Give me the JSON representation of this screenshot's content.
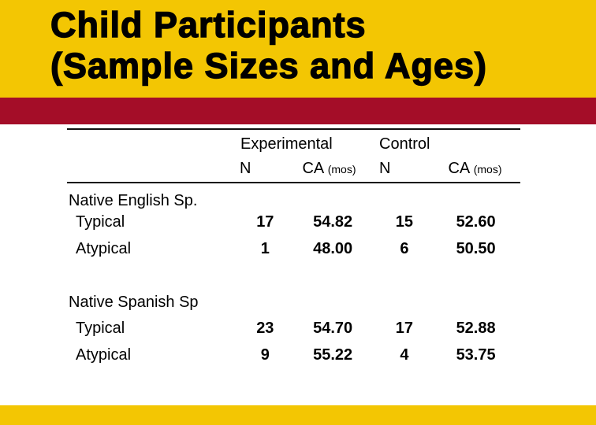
{
  "title": {
    "line1": "Child Participants",
    "line2": "(Sample Sizes and Ages)"
  },
  "colors": {
    "slide_yellow": "#F3C603",
    "band_red": "#A40D28",
    "text": "#000000",
    "rule": "#111111"
  },
  "table": {
    "col_groups": [
      {
        "label": "Experimental"
      },
      {
        "label": "Control"
      }
    ],
    "sub_headers": {
      "n_experimental": "N",
      "ca_experimental": "CA",
      "ca_unit_experimental": "(mos)",
      "n_control": "N",
      "ca_control": "CA",
      "ca_unit_control": "(mos)"
    },
    "groups": [
      {
        "label": "Native English Sp.",
        "rows": [
          {
            "label": "Typical",
            "n_exp": "17",
            "ca_exp": "54.82",
            "n_ctrl": "15",
            "ca_ctrl": "52.60"
          },
          {
            "label": "Atypical",
            "n_exp": "1",
            "ca_exp": "48.00",
            "n_ctrl": "6",
            "ca_ctrl": "50.50"
          }
        ]
      },
      {
        "label": "Native Spanish Sp",
        "rows": [
          {
            "label": "Typical",
            "n_exp": "23",
            "ca_exp": "54.70",
            "n_ctrl": "17",
            "ca_ctrl": "52.88"
          },
          {
            "label": "Atypical",
            "n_exp": "9",
            "ca_exp": "55.22",
            "n_ctrl": "4",
            "ca_ctrl": "53.75"
          }
        ]
      }
    ]
  }
}
